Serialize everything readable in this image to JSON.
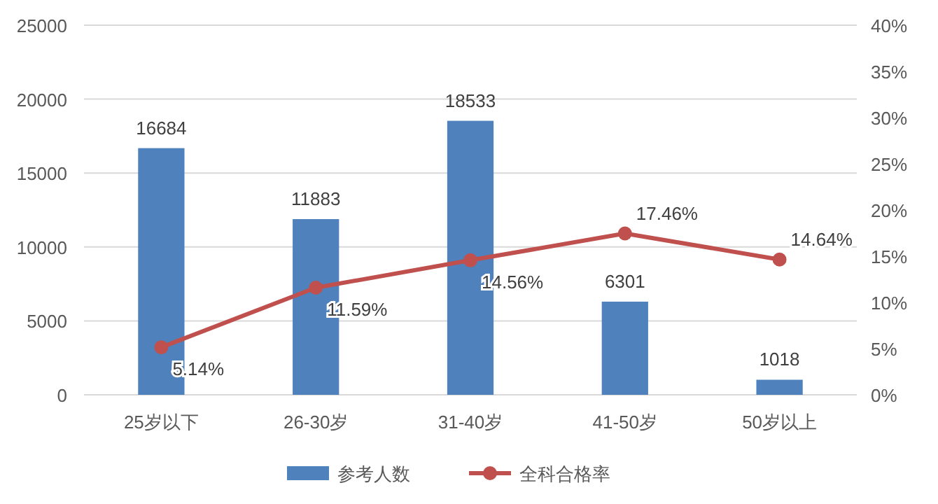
{
  "chart_data": {
    "type": "bar",
    "categories": [
      "25岁以下",
      "26-30岁",
      "31-40岁",
      "41-50岁",
      "50岁以上"
    ],
    "series": [
      {
        "name": "参考人数",
        "color": "#4f81bd",
        "values": [
          16684,
          11883,
          18533,
          6301,
          1018
        ],
        "value_labels": [
          "16684",
          "11883",
          "18533",
          "6301",
          "1018"
        ]
      },
      {
        "name": "全科合格率",
        "type": "line",
        "axis": "y2",
        "color": "#c0504d",
        "marker": "circle",
        "values": [
          5.14,
          11.59,
          14.56,
          17.46,
          14.64
        ],
        "value_labels": [
          "5.14%",
          "11.59%",
          "14.56%",
          "17.46%",
          "14.64%"
        ]
      }
    ],
    "ylim": [
      0,
      25000
    ],
    "yticks": [
      0,
      5000,
      10000,
      15000,
      20000,
      25000
    ],
    "y2lim": [
      0,
      40
    ],
    "y2ticks": [
      {
        "value": 0,
        "label": "0%"
      },
      {
        "value": 5,
        "label": "5%"
      },
      {
        "value": 10,
        "label": "10%"
      },
      {
        "value": 15,
        "label": "15%"
      },
      {
        "value": 20,
        "label": "20%"
      },
      {
        "value": 25,
        "label": "25%"
      },
      {
        "value": 30,
        "label": "30%"
      },
      {
        "value": 35,
        "label": "35%"
      },
      {
        "value": 40,
        "label": "40%"
      }
    ],
    "grid": "y",
    "legend": "bottom"
  }
}
